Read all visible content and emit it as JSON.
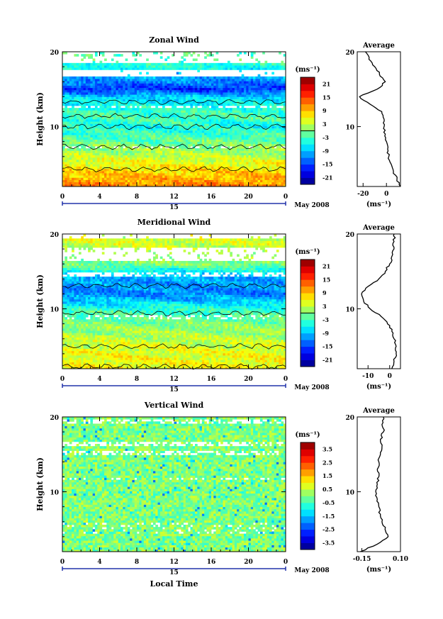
{
  "chart_data": [
    {
      "type": "heatmap",
      "title": "Zonal Wind",
      "xlabel": "",
      "ylabel": "Height (km)",
      "xlim": [
        0,
        24
      ],
      "ylim": [
        2,
        20
      ],
      "xticks": [
        "0",
        "4",
        "8",
        "12",
        "16",
        "20",
        "0"
      ],
      "yticks": [
        "10",
        "20"
      ],
      "date_label": "15",
      "month_label": "May 2008",
      "colorbar": {
        "unit": "(ms⁻¹)",
        "min": -24,
        "max": 24,
        "ticks": [
          "21",
          "15",
          "9",
          "3",
          "-3",
          "-9",
          "-15",
          "-21"
        ]
      },
      "profile_by_height": {
        "height_km": [
          2,
          4,
          6,
          8,
          10,
          11,
          12,
          14,
          15,
          16,
          18,
          19
        ],
        "value_ms": [
          12,
          8,
          3,
          -1,
          -5,
          -3,
          -3,
          -8,
          -16,
          -12,
          -5,
          -2
        ]
      },
      "average": {
        "title": "Average",
        "xlabel": "(ms⁻¹)",
        "xlim": [
          -25,
          12
        ],
        "xticks": [
          "-20",
          "0"
        ],
        "yticks": [
          "10",
          "20"
        ],
        "height_km": [
          2,
          3,
          4,
          5,
          6,
          7,
          8,
          9,
          10,
          11,
          12,
          13,
          14,
          15,
          16,
          17,
          18,
          19,
          20
        ],
        "value_ms": [
          12,
          9,
          6,
          4,
          2,
          1,
          0,
          -1,
          -2,
          -2,
          -4,
          -14,
          -23,
          -8,
          -1,
          -6,
          -10,
          -15,
          -18
        ]
      }
    },
    {
      "type": "heatmap",
      "title": "Meridional Wind",
      "xlabel": "",
      "ylabel": "Height (km)",
      "xlim": [
        0,
        24
      ],
      "ylim": [
        2,
        20
      ],
      "xticks": [
        "0",
        "4",
        "8",
        "12",
        "16",
        "20",
        "0"
      ],
      "yticks": [
        "10",
        "20"
      ],
      "date_label": "15",
      "month_label": "May 2008",
      "colorbar": {
        "unit": "(ms⁻¹)",
        "min": -24,
        "max": 24,
        "ticks": [
          "21",
          "15",
          "9",
          "3",
          "-3",
          "-9",
          "-15",
          "-21"
        ]
      },
      "profile_by_height": {
        "height_km": [
          2,
          4,
          6,
          8,
          10,
          11,
          12,
          14,
          15,
          16,
          18,
          19
        ],
        "value_ms": [
          6,
          5,
          3,
          0,
          -4,
          -8,
          -12,
          -10,
          -6,
          0,
          3,
          4
        ]
      },
      "average": {
        "title": "Average",
        "xlabel": "(ms⁻¹)",
        "xlim": [
          -15,
          5
        ],
        "xticks": [
          "-10",
          "0"
        ],
        "yticks": [
          "10",
          "20"
        ],
        "height_km": [
          2,
          3,
          4,
          5,
          6,
          7,
          8,
          9,
          10,
          11,
          12,
          13,
          14,
          15,
          16,
          17,
          18,
          19,
          20
        ],
        "value_ms": [
          1,
          2,
          3,
          3,
          2,
          1,
          -1,
          -4,
          -9,
          -12,
          -13,
          -10,
          -5,
          -2,
          0,
          1,
          2,
          2,
          2
        ]
      }
    },
    {
      "type": "heatmap",
      "title": "Vertical Wind",
      "xlabel": "Local Time",
      "ylabel": "Height (km)",
      "xlim": [
        0,
        24
      ],
      "ylim": [
        2,
        20
      ],
      "xticks": [
        "0",
        "4",
        "8",
        "12",
        "16",
        "20",
        "0"
      ],
      "yticks": [
        "10",
        "20"
      ],
      "date_label": "15",
      "month_label": "May 2008",
      "colorbar": {
        "unit": "(ms⁻¹)",
        "min": -4,
        "max": 4,
        "ticks": [
          "3.5",
          "2.5",
          "1.5",
          "0.5",
          "-0.5",
          "-1.5",
          "-2.5",
          "-3.5"
        ]
      },
      "profile_by_height": {
        "height_km": [
          2,
          6,
          10,
          14,
          18
        ],
        "value_ms": [
          0,
          0,
          0,
          0,
          0
        ]
      },
      "average": {
        "title": "Average",
        "xlabel": "(ms⁻¹)",
        "xlim": [
          -0.18,
          0.1
        ],
        "xticks": [
          "-0.15",
          "0.10"
        ],
        "yticks": [
          "10",
          "20"
        ],
        "height_km": [
          2,
          3,
          4,
          5,
          6,
          7,
          8,
          9,
          10,
          11,
          12,
          13,
          14,
          15,
          16,
          17,
          18,
          19,
          20
        ],
        "value_ms": [
          -0.16,
          -0.05,
          0.02,
          0.0,
          -0.02,
          -0.03,
          -0.04,
          -0.05,
          -0.06,
          -0.05,
          -0.04,
          -0.05,
          -0.04,
          -0.03,
          -0.02,
          -0.03,
          -0.01,
          -0.02,
          -0.01
        ]
      }
    }
  ]
}
